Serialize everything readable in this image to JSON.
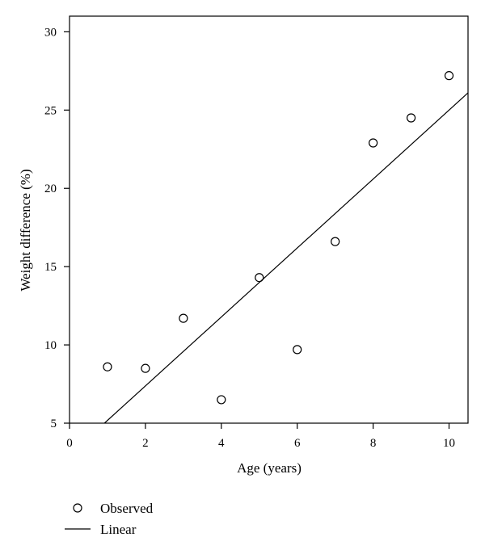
{
  "chart_data": {
    "type": "scatter",
    "xlabel": "Age (years)",
    "ylabel": "Weight difference (%)",
    "xlim": [
      0,
      10.5
    ],
    "ylim": [
      5,
      31
    ],
    "x_ticks": [
      0,
      2,
      4,
      6,
      8,
      10
    ],
    "y_ticks": [
      5,
      10,
      15,
      20,
      25,
      30
    ],
    "grid": false,
    "legend_position": "below-left",
    "series": [
      {
        "name": "Observed",
        "marker": "open-circle",
        "x": [
          1,
          2,
          3,
          4,
          5,
          6,
          7,
          8,
          9,
          10
        ],
        "y": [
          8.6,
          8.5,
          11.7,
          6.5,
          14.3,
          9.7,
          16.6,
          22.9,
          24.5,
          27.2
        ]
      },
      {
        "name": "Linear",
        "style": "line",
        "x": [
          0.92,
          10.5
        ],
        "y": [
          5,
          26.1
        ]
      }
    ],
    "colors": {
      "marks": "#000000",
      "background": "#ffffff"
    }
  }
}
